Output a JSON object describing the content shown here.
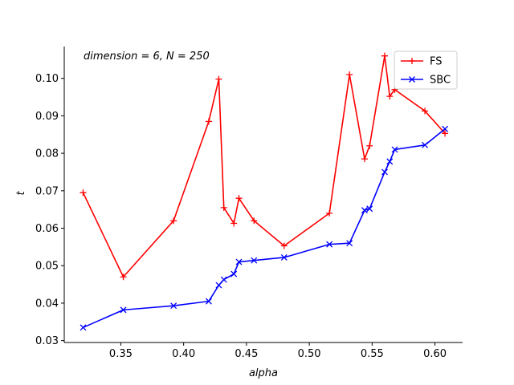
{
  "chart_data": {
    "type": "line",
    "xlabel": "alpha",
    "ylabel": "t",
    "annotation": "dimension = 6, N = 250",
    "xlim": [
      0.305,
      0.622
    ],
    "ylim": [
      0.0295,
      0.1085
    ],
    "xticks": [
      "0.35",
      "0.40",
      "0.45",
      "0.50",
      "0.55",
      "0.60"
    ],
    "yticks": [
      "0.03",
      "0.04",
      "0.05",
      "0.06",
      "0.07",
      "0.08",
      "0.09",
      "0.10"
    ],
    "legend_position": "top-right",
    "grid": false,
    "series": [
      {
        "name": "FS",
        "color": "#ff0000",
        "marker": "plus",
        "points": [
          [
            0.32,
            0.0695
          ],
          [
            0.352,
            0.047
          ],
          [
            0.392,
            0.062
          ],
          [
            0.42,
            0.0885
          ],
          [
            0.428,
            0.0998
          ],
          [
            0.432,
            0.0655
          ],
          [
            0.44,
            0.0613
          ],
          [
            0.444,
            0.068
          ],
          [
            0.456,
            0.062
          ],
          [
            0.48,
            0.0553
          ],
          [
            0.516,
            0.064
          ],
          [
            0.532,
            0.101
          ],
          [
            0.544,
            0.0785
          ],
          [
            0.548,
            0.082
          ],
          [
            0.56,
            0.106
          ],
          [
            0.564,
            0.0952
          ],
          [
            0.568,
            0.097
          ],
          [
            0.592,
            0.0913
          ],
          [
            0.608,
            0.0853
          ]
        ]
      },
      {
        "name": "SBC",
        "color": "#0000ff",
        "marker": "x",
        "points": [
          [
            0.32,
            0.0335
          ],
          [
            0.352,
            0.0382
          ],
          [
            0.392,
            0.0393
          ],
          [
            0.42,
            0.0405
          ],
          [
            0.428,
            0.0448
          ],
          [
            0.432,
            0.0463
          ],
          [
            0.44,
            0.0478
          ],
          [
            0.444,
            0.051
          ],
          [
            0.456,
            0.0514
          ],
          [
            0.48,
            0.0522
          ],
          [
            0.516,
            0.0557
          ],
          [
            0.532,
            0.056
          ],
          [
            0.544,
            0.0648
          ],
          [
            0.548,
            0.0652
          ],
          [
            0.56,
            0.075
          ],
          [
            0.564,
            0.0778
          ],
          [
            0.568,
            0.081
          ],
          [
            0.592,
            0.0822
          ],
          [
            0.608,
            0.0865
          ]
        ]
      }
    ]
  }
}
